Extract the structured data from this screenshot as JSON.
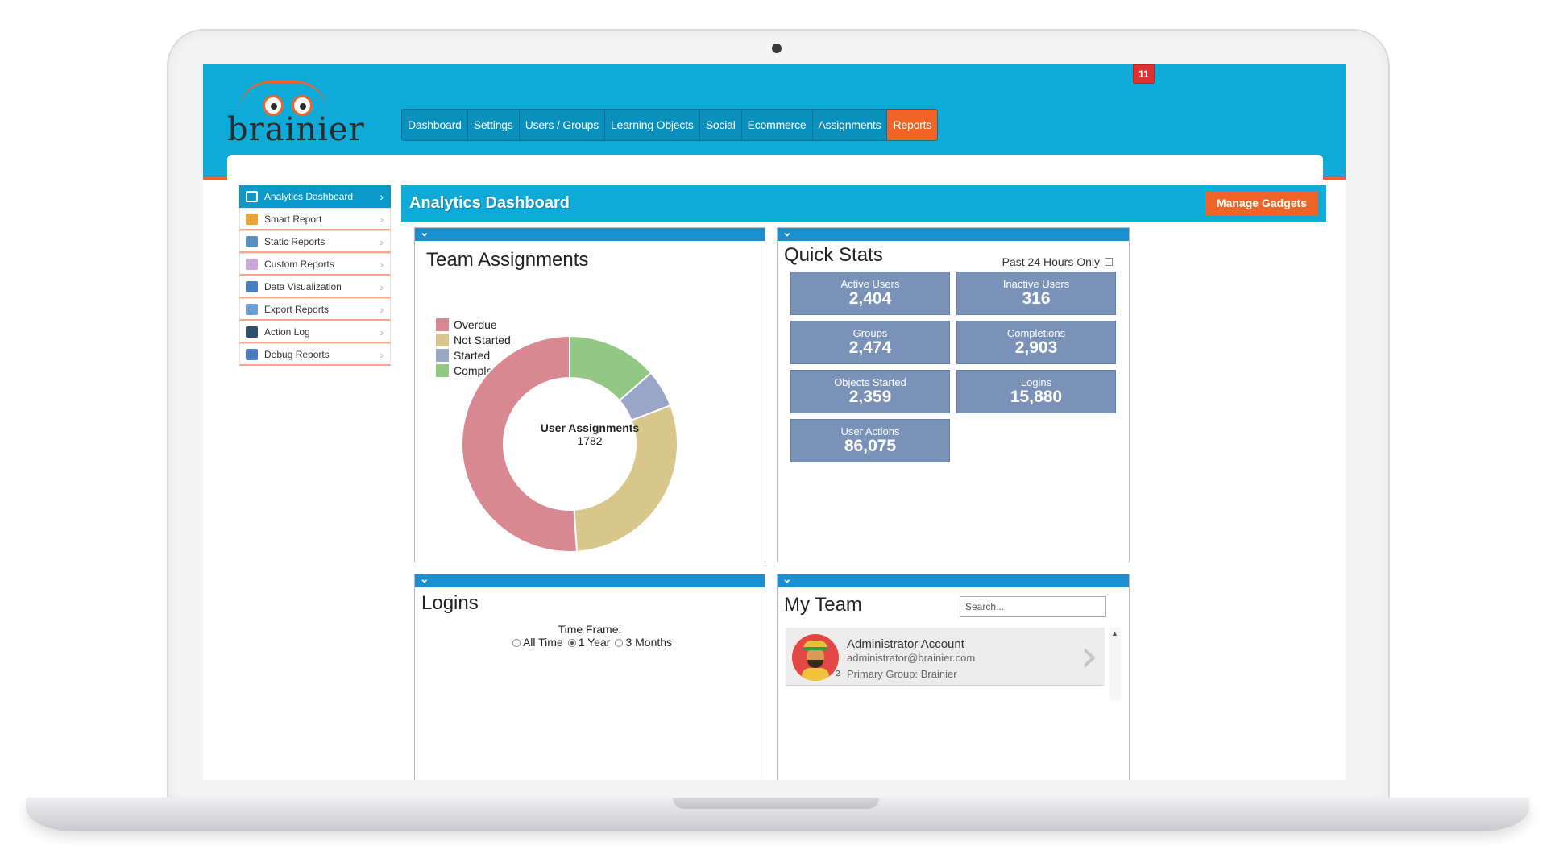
{
  "header": {
    "logo_text": "brainier",
    "notification_count": "11",
    "nav": [
      {
        "label": "Dashboard",
        "active": false
      },
      {
        "label": "Settings",
        "active": false
      },
      {
        "label": "Users / Groups",
        "active": false
      },
      {
        "label": "Learning Objects",
        "active": false
      },
      {
        "label": "Social",
        "active": false
      },
      {
        "label": "Ecommerce",
        "active": false
      },
      {
        "label": "Assignments",
        "active": false
      },
      {
        "label": "Reports",
        "active": true
      }
    ]
  },
  "sidebar": {
    "items": [
      {
        "label": "Analytics Dashboard",
        "icon": "grid-icon",
        "active": true
      },
      {
        "label": "Smart Report",
        "icon": "smart-report-icon",
        "active": false
      },
      {
        "label": "Static Reports",
        "icon": "static-reports-icon",
        "active": false
      },
      {
        "label": "Custom Reports",
        "icon": "custom-reports-icon",
        "active": false
      },
      {
        "label": "Data Visualization",
        "icon": "bar-chart-icon",
        "active": false
      },
      {
        "label": "Export Reports",
        "icon": "export-icon",
        "active": false
      },
      {
        "label": "Action Log",
        "icon": "log-icon",
        "active": false
      },
      {
        "label": "Debug Reports",
        "icon": "debug-icon",
        "active": false
      }
    ]
  },
  "page": {
    "title": "Analytics Dashboard",
    "manage_label": "Manage Gadgets"
  },
  "team_assignments": {
    "title": "Team Assignments",
    "center_title": "User Assignments",
    "center_value": "1782"
  },
  "chart_data": {
    "type": "pie",
    "categories": [
      "Overdue",
      "Not Started",
      "Started",
      "Complete"
    ],
    "values": [
      910,
      530,
      100,
      242
    ],
    "colors": [
      "#d98891",
      "#d8c68b",
      "#9aa6c7",
      "#92c784"
    ],
    "title": "Team Assignments",
    "legend": "top-left"
  },
  "quick_stats": {
    "title": "Quick Stats",
    "option_label": "Past 24 Hours Only",
    "stats": [
      {
        "label": "Active Users",
        "value": "2,404"
      },
      {
        "label": "Inactive Users",
        "value": "316"
      },
      {
        "label": "Groups",
        "value": "2,474"
      },
      {
        "label": "Completions",
        "value": "2,903"
      },
      {
        "label": "Objects Started",
        "value": "2,359"
      },
      {
        "label": "Logins",
        "value": "15,880"
      },
      {
        "label": "User Actions",
        "value": "86,075"
      }
    ]
  },
  "logins": {
    "title": "Logins",
    "timeframe_label": "Time Frame:",
    "options": [
      {
        "label": "All Time",
        "selected": false
      },
      {
        "label": "1 Year",
        "selected": true
      },
      {
        "label": "3 Months",
        "selected": false
      }
    ]
  },
  "my_team": {
    "title": "My Team",
    "search_placeholder": "Search...",
    "member": {
      "name": "Administrator Account",
      "email": "administrator@brainier.com",
      "group": "Primary Group: Brainier",
      "badge": "2"
    }
  },
  "colors": {
    "brand_blue": "#0eaad8",
    "accent_orange": "#f06427",
    "stat_tile": "#7a92b8"
  }
}
